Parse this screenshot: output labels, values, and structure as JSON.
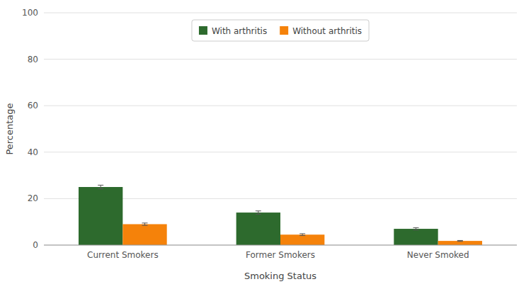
{
  "chart_data": {
    "type": "bar",
    "xlabel": "Smoking Status",
    "ylabel": "Percentage",
    "categories": [
      "Current Smokers",
      "Former Smokers",
      "Never Smoked"
    ],
    "series": [
      {
        "name": "With arthritis",
        "color": "#2d6a2d",
        "values": [
          25.0,
          14.0,
          7.0
        ],
        "errors": [
          0.8,
          0.7,
          0.5
        ]
      },
      {
        "name": "Without arthritis",
        "color": "#f5820a",
        "values": [
          9.0,
          4.5,
          1.8
        ],
        "errors": [
          0.5,
          0.4,
          0.2
        ]
      }
    ],
    "ylim": [
      0,
      100
    ],
    "yticks": [
      0,
      20,
      40,
      60,
      80,
      100
    ],
    "grid": true,
    "legend": "top"
  }
}
